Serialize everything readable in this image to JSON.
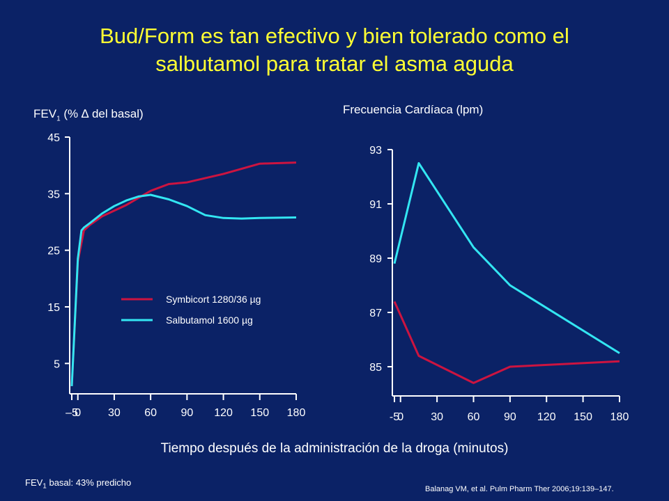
{
  "title_line1": "Bud/Form es tan efectivo y bien tolerado como el",
  "title_line2": "salbutamol para tratar el asma aguda",
  "xlabel": "Tiempo después de la administración de la droga (minutos)",
  "footnote": {
    "prefix": "FEV",
    "sub": "1",
    "text": " basal: 43% predicho"
  },
  "citation": "Balanag VM, et al. Pulm Pharm Ther 2006;19:139–147.",
  "colors": {
    "symbicort": "#cc1440",
    "salbutamol": "#33e6f2",
    "title": "#ffff33",
    "background": "#0b2266"
  },
  "chart_data": [
    {
      "type": "line",
      "ylabel": {
        "prefix": "FEV",
        "sub": "1",
        "text": " (% ∆ del basal)"
      },
      "x_ticks": [
        -5,
        0,
        30,
        60,
        90,
        120,
        150,
        180
      ],
      "x_tick_labels": [
        "–5",
        "0",
        "30",
        "60",
        "90",
        "120",
        "150",
        "180"
      ],
      "y_ticks": [
        5,
        15,
        25,
        35,
        45
      ],
      "xlim": [
        -5,
        180
      ],
      "ylim": [
        0,
        45
      ],
      "legend": {
        "position": "center",
        "entries": [
          "Symbicort 1280/36 µg",
          "Salbutamol 1600 µg"
        ]
      },
      "series": [
        {
          "name": "Symbicort 1280/36 µg",
          "color": "#cc1440",
          "x": [
            -5,
            0,
            5,
            10,
            20,
            40,
            60,
            75,
            90,
            120,
            150,
            180
          ],
          "y": [
            1,
            23,
            28.5,
            29.5,
            31,
            33,
            35.5,
            36.7,
            37,
            38.5,
            40.3,
            40.5
          ]
        },
        {
          "name": "Salbutamol 1600 µg",
          "color": "#33e6f2",
          "x": [
            -5,
            0,
            3,
            5,
            10,
            20,
            30,
            40,
            50,
            60,
            75,
            90,
            105,
            120,
            135,
            150,
            180
          ],
          "y": [
            1,
            23.5,
            28.5,
            29,
            29.8,
            31.5,
            32.8,
            33.8,
            34.5,
            34.8,
            34,
            32.8,
            31.2,
            30.7,
            30.6,
            30.7,
            30.8
          ]
        }
      ]
    },
    {
      "type": "line",
      "ylabel": "Frecuencia Cardíaca (lpm)",
      "x_ticks": [
        -5,
        0,
        30,
        60,
        90,
        120,
        150,
        180
      ],
      "x_tick_labels": [
        "-5",
        "0",
        "30",
        "60",
        "90",
        "120",
        "150",
        "180"
      ],
      "y_ticks": [
        85,
        87,
        89,
        91,
        93
      ],
      "xlim": [
        -5,
        180
      ],
      "ylim": [
        84,
        93
      ],
      "series": [
        {
          "name": "Symbicort 1280/36 µg",
          "color": "#cc1440",
          "x": [
            -5,
            15,
            60,
            90,
            180
          ],
          "y": [
            87.4,
            85.4,
            84.4,
            85.0,
            85.2
          ]
        },
        {
          "name": "Salbutamol 1600 µg",
          "color": "#33e6f2",
          "x": [
            -5,
            15,
            60,
            90,
            180
          ],
          "y": [
            88.8,
            92.5,
            89.4,
            88.0,
            85.5
          ]
        }
      ]
    }
  ]
}
